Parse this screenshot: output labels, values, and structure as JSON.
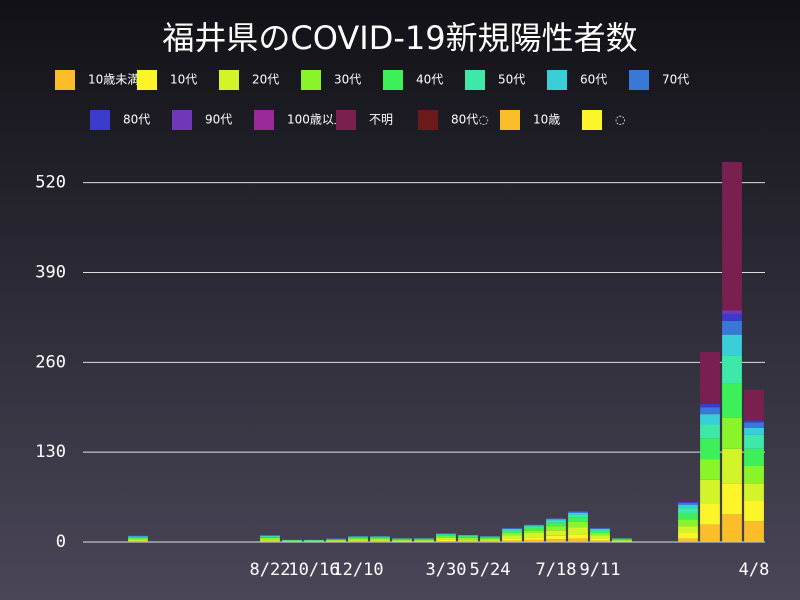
{
  "chart_data": {
    "type": "stacked-bar",
    "title": "福井県のCOVID-19新規陽性者数",
    "categories": [
      null,
      null,
      null,
      null,
      null,
      null,
      null,
      null,
      "8/22",
      null,
      "10/16",
      null,
      "12/10",
      null,
      null,
      null,
      "3/30",
      null,
      "5/24",
      null,
      null,
      "7/18",
      null,
      "9/11",
      null,
      null,
      null,
      null,
      null,
      null,
      "4/8"
    ],
    "series": [
      {
        "name": "10歳未満",
        "color": "#fbbd2a",
        "values": [
          0,
          0,
          1,
          0,
          0,
          0,
          0,
          0,
          1,
          0,
          0,
          0,
          1,
          1,
          0,
          0,
          1,
          1,
          1,
          2,
          3,
          4,
          5,
          2,
          0,
          0,
          0,
          5,
          25,
          40,
          30
        ]
      },
      {
        "name": "10代",
        "color": "#fcf52a",
        "values": [
          0,
          0,
          1,
          0,
          0,
          0,
          0,
          0,
          1,
          0,
          0,
          1,
          1,
          1,
          1,
          1,
          2,
          1,
          1,
          3,
          4,
          5,
          6,
          3,
          1,
          0,
          0,
          8,
          30,
          45,
          30
        ]
      },
      {
        "name": "20代",
        "color": "#d4f42a",
        "values": [
          0,
          0,
          2,
          0,
          0,
          0,
          0,
          0,
          2,
          1,
          1,
          1,
          2,
          2,
          1,
          1,
          3,
          2,
          2,
          5,
          6,
          8,
          10,
          5,
          1,
          0,
          0,
          10,
          35,
          50,
          25
        ]
      },
      {
        "name": "30代",
        "color": "#8af42a",
        "values": [
          0,
          0,
          1,
          0,
          0,
          0,
          0,
          0,
          2,
          1,
          1,
          1,
          1,
          1,
          1,
          1,
          2,
          2,
          1,
          3,
          4,
          6,
          8,
          3,
          1,
          0,
          0,
          10,
          30,
          45,
          25
        ]
      },
      {
        "name": "40代",
        "color": "#3df05a",
        "values": [
          0,
          0,
          1,
          0,
          0,
          0,
          0,
          0,
          1,
          0,
          0,
          1,
          1,
          1,
          1,
          1,
          2,
          2,
          1,
          3,
          4,
          5,
          7,
          3,
          1,
          0,
          0,
          9,
          30,
          50,
          25
        ]
      },
      {
        "name": "50代",
        "color": "#3ee8a8",
        "values": [
          0,
          0,
          1,
          0,
          0,
          0,
          0,
          0,
          1,
          1,
          1,
          0,
          1,
          1,
          1,
          1,
          1,
          1,
          1,
          2,
          2,
          3,
          4,
          2,
          1,
          0,
          0,
          7,
          20,
          40,
          20
        ]
      },
      {
        "name": "60代",
        "color": "#3acfd8",
        "values": [
          0,
          0,
          1,
          0,
          0,
          0,
          0,
          0,
          1,
          0,
          0,
          0,
          1,
          1,
          0,
          0,
          1,
          1,
          1,
          1,
          1,
          2,
          2,
          1,
          0,
          0,
          0,
          5,
          15,
          30,
          10
        ]
      },
      {
        "name": "70代",
        "color": "#3a78d8",
        "values": [
          0,
          0,
          1,
          0,
          0,
          0,
          0,
          0,
          1,
          0,
          0,
          1,
          0,
          0,
          0,
          0,
          0,
          0,
          0,
          1,
          1,
          1,
          2,
          1,
          0,
          0,
          0,
          3,
          10,
          20,
          8
        ]
      },
      {
        "name": "80代",
        "color": "#3a3acc",
        "values": [
          0,
          0,
          0,
          0,
          0,
          0,
          0,
          0,
          0,
          0,
          0,
          0,
          0,
          0,
          0,
          0,
          0,
          0,
          0,
          0,
          0,
          0,
          0,
          0,
          0,
          0,
          0,
          1,
          5,
          10,
          3
        ]
      },
      {
        "name": "90代",
        "color": "#7038b8",
        "values": [
          0,
          0,
          0,
          0,
          0,
          0,
          0,
          0,
          0,
          0,
          0,
          0,
          0,
          0,
          0,
          0,
          0,
          0,
          0,
          0,
          0,
          0,
          0,
          0,
          0,
          0,
          0,
          0,
          0,
          5,
          0
        ]
      },
      {
        "name": "100歳以上",
        "color": "#9a2a9a",
        "values": [
          0,
          0,
          0,
          0,
          0,
          0,
          0,
          0,
          0,
          0,
          0,
          0,
          0,
          0,
          0,
          0,
          0,
          0,
          0,
          0,
          0,
          0,
          0,
          0,
          0,
          0,
          0,
          0,
          0,
          0,
          0
        ]
      },
      {
        "name": "不明",
        "color": "#7a2050",
        "values": [
          0,
          0,
          0,
          0,
          0,
          0,
          0,
          0,
          0,
          0,
          0,
          0,
          0,
          0,
          0,
          0,
          0,
          0,
          0,
          0,
          0,
          0,
          0,
          0,
          0,
          0,
          0,
          2,
          75,
          215,
          44
        ]
      },
      {
        "name": "80代◌",
        "color": "#6a1a1a",
        "values": [
          0,
          0,
          0,
          0,
          0,
          0,
          0,
          0,
          0,
          0,
          0,
          0,
          0,
          0,
          0,
          0,
          0,
          0,
          0,
          0,
          0,
          0,
          0,
          0,
          0,
          0,
          0,
          0,
          0,
          0,
          0
        ]
      },
      {
        "name": "10歳",
        "color": "#fbbd2a",
        "values": [
          0,
          0,
          0,
          0,
          0,
          0,
          0,
          0,
          0,
          0,
          0,
          0,
          0,
          0,
          0,
          0,
          0,
          0,
          0,
          0,
          0,
          0,
          0,
          0,
          0,
          0,
          0,
          0,
          0,
          0,
          0
        ]
      },
      {
        "name": "◌",
        "color": "#fcf52a",
        "values": [
          0,
          0,
          0,
          0,
          0,
          0,
          0,
          0,
          0,
          0,
          0,
          0,
          0,
          0,
          0,
          0,
          0,
          0,
          0,
          0,
          0,
          0,
          0,
          0,
          0,
          0,
          0,
          0,
          0,
          0,
          0
        ]
      }
    ],
    "ylim": [
      0,
      560
    ],
    "yticks": [
      0,
      130,
      260,
      390,
      520
    ],
    "grid": true
  }
}
